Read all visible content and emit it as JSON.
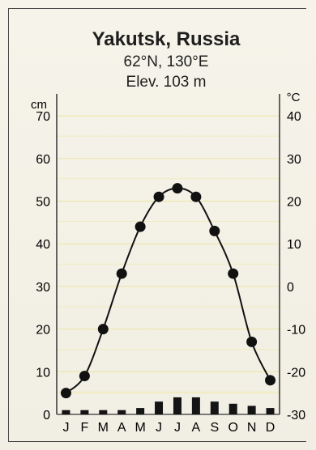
{
  "chart_data": {
    "type": "climograph",
    "title": "Yakutsk, Russia",
    "subtitle_lines": [
      "62°N, 130°E",
      "Elev. 103 m"
    ],
    "left_axis": {
      "unit": "cm",
      "ticks": [
        0,
        10,
        20,
        30,
        40,
        50,
        60,
        70
      ],
      "range": [
        0,
        74
      ]
    },
    "right_axis": {
      "unit": "°C",
      "ticks": [
        -30,
        -20,
        -10,
        0,
        10,
        20,
        30,
        40
      ],
      "range": [
        -30,
        44
      ]
    },
    "months": [
      "J",
      "F",
      "M",
      "A",
      "M",
      "J",
      "J",
      "A",
      "S",
      "O",
      "N",
      "D"
    ],
    "temperature_c": [
      -25,
      -21,
      -10,
      3,
      14,
      21,
      23,
      21,
      13,
      3,
      -13,
      -22
    ],
    "precipitation_cm": [
      1,
      1,
      1,
      1,
      1.5,
      3,
      4,
      4,
      3,
      2.5,
      2,
      1.5
    ],
    "grid": true
  }
}
